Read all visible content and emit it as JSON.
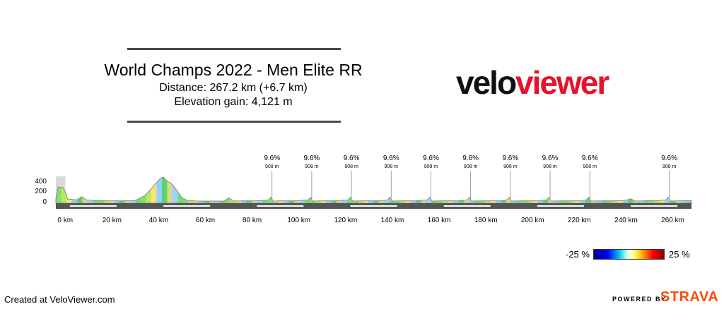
{
  "chart_data": {
    "type": "area",
    "title": "World Champs 2022 - Men Elite RR",
    "distance": "Distance: 267.2 km (+6.7 km)",
    "elevation_gain": "Elevation gain: 4,121 m",
    "xlabel": "",
    "ylabel": "",
    "xlim": [
      -4,
      268
    ],
    "ylim": [
      0,
      500
    ],
    "x_ticks": [
      {
        "value": 0,
        "label": "0 km"
      },
      {
        "value": 20,
        "label": "20 km"
      },
      {
        "value": 40,
        "label": "40 km"
      },
      {
        "value": 60,
        "label": "60 km"
      },
      {
        "value": 80,
        "label": "80 km"
      },
      {
        "value": 100,
        "label": "100 km"
      },
      {
        "value": 120,
        "label": "120 km"
      },
      {
        "value": 140,
        "label": "140 km"
      },
      {
        "value": 160,
        "label": "160 km"
      },
      {
        "value": 180,
        "label": "180 km"
      },
      {
        "value": 200,
        "label": "200 km"
      },
      {
        "value": 220,
        "label": "220 km"
      },
      {
        "value": 240,
        "label": "240 km"
      },
      {
        "value": 260,
        "label": "260 km"
      }
    ],
    "y_ticks": [
      {
        "value": 0,
        "label": "0"
      },
      {
        "value": 200,
        "label": "200"
      },
      {
        "value": 400,
        "label": "400"
      }
    ],
    "x": [
      -4,
      -3,
      -1,
      0,
      1,
      3,
      5,
      7,
      9,
      11,
      13,
      15,
      18,
      21,
      25,
      30,
      34,
      36,
      38,
      40,
      41,
      42,
      43,
      44,
      45,
      46,
      47,
      48,
      49,
      50,
      52,
      56,
      62,
      68,
      70,
      72,
      76,
      82,
      87,
      88,
      89,
      92,
      98,
      104,
      105,
      106,
      110,
      116,
      121,
      122,
      123,
      128,
      134,
      138,
      139,
      140,
      145,
      150,
      155,
      156,
      157,
      162,
      168,
      172,
      173,
      174,
      180,
      186,
      189,
      190,
      191,
      196,
      202,
      206,
      207,
      208,
      214,
      220,
      223,
      224,
      225,
      230,
      236,
      240,
      242,
      244,
      248,
      254,
      257,
      258,
      259,
      263,
      268
    ],
    "values": [
      80,
      300,
      290,
      220,
      80,
      70,
      60,
      120,
      60,
      55,
      50,
      50,
      45,
      45,
      45,
      50,
      140,
      230,
      330,
      430,
      470,
      490,
      440,
      400,
      380,
      340,
      280,
      220,
      160,
      100,
      55,
      40,
      40,
      40,
      100,
      40,
      45,
      45,
      60,
      110,
      40,
      45,
      45,
      60,
      110,
      40,
      45,
      45,
      60,
      110,
      40,
      45,
      45,
      60,
      110,
      40,
      45,
      45,
      60,
      110,
      40,
      45,
      45,
      60,
      110,
      40,
      45,
      45,
      60,
      110,
      40,
      45,
      45,
      60,
      110,
      40,
      45,
      45,
      60,
      110,
      40,
      45,
      45,
      55,
      80,
      40,
      45,
      50,
      60,
      110,
      40,
      45,
      50
    ],
    "climbs": [
      {
        "x": 88.5,
        "gradient": "9.6%",
        "elevation": "908 m"
      },
      {
        "x": 105.5,
        "gradient": "9.6%",
        "elevation": "908 m"
      },
      {
        "x": 122.5,
        "gradient": "9.6%",
        "elevation": "908 m"
      },
      {
        "x": 139.5,
        "gradient": "9.6%",
        "elevation": "908 m"
      },
      {
        "x": 156.5,
        "gradient": "9.6%",
        "elevation": "908 m"
      },
      {
        "x": 173.5,
        "gradient": "9.6%",
        "elevation": "908 m"
      },
      {
        "x": 190.5,
        "gradient": "9.6%",
        "elevation": "908 m"
      },
      {
        "x": 207.5,
        "gradient": "9.6%",
        "elevation": "908 m"
      },
      {
        "x": 224.5,
        "gradient": "9.6%",
        "elevation": "908 m"
      },
      {
        "x": 258.5,
        "gradient": "9.6%",
        "elevation": "908 m"
      }
    ],
    "shaded_range": [
      -4,
      0
    ],
    "distance_bar_segments": [
      [
        2,
        22
      ],
      [
        42,
        62
      ],
      [
        82,
        102
      ],
      [
        122,
        142
      ],
      [
        162,
        182
      ],
      [
        202,
        222
      ],
      [
        242,
        262
      ]
    ],
    "gradient_legend": {
      "min_label": "-25 %",
      "max_label": "25 %",
      "min": -25,
      "max": 25,
      "colors": [
        "#00008b",
        "#0000ff",
        "#00bfff",
        "#7fffd4",
        "#ffffff",
        "#ffff66",
        "#ffa500",
        "#ff0000",
        "#8b0000"
      ]
    }
  },
  "branding": {
    "logo_part1": "velo",
    "logo_part2": "viewer",
    "created_at": "Created at VeloViewer.com",
    "powered_by": "POWERED BY",
    "strava": "STRAVA",
    "accent_color": "#e8112d",
    "strava_color": "#fc4c02"
  }
}
